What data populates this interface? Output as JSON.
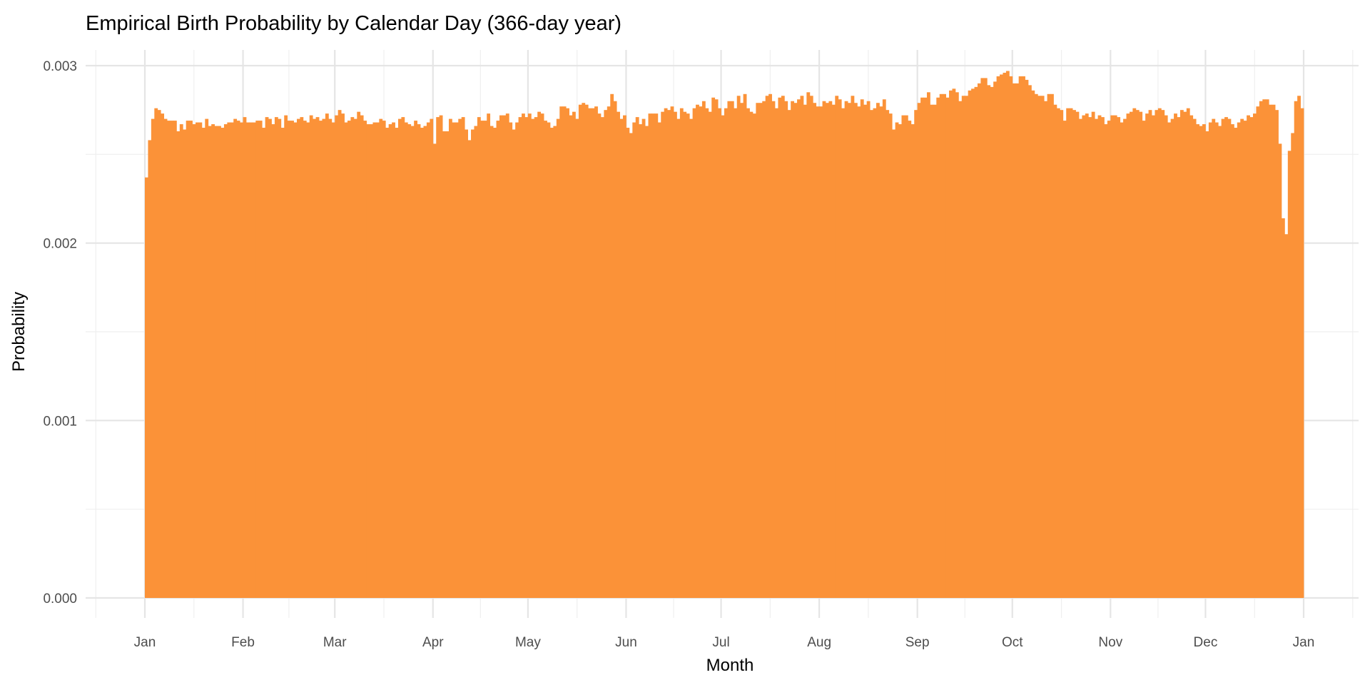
{
  "chart_data": {
    "type": "bar",
    "title": "Empirical Birth Probability by Calendar Day (366-day year)",
    "xlabel": "Month",
    "ylabel": "Probability",
    "ylim": [
      0,
      0.003
    ],
    "xlim_days": [
      -18.7,
      383.4
    ],
    "grid": true,
    "bar_color": "#fb9238",
    "y_ticks": [
      {
        "value": 0,
        "label": "0.000"
      },
      {
        "value": 0.001,
        "label": "0.001"
      },
      {
        "value": 0.002,
        "label": "0.002"
      },
      {
        "value": 0.003,
        "label": "0.003"
      }
    ],
    "x_ticks": [
      {
        "day": 0,
        "label": "Jan"
      },
      {
        "day": 31,
        "label": "Feb"
      },
      {
        "day": 60,
        "label": "Mar"
      },
      {
        "day": 91,
        "label": "Apr"
      },
      {
        "day": 121,
        "label": "May"
      },
      {
        "day": 152,
        "label": "Jun"
      },
      {
        "day": 182,
        "label": "Jul"
      },
      {
        "day": 213,
        "label": "Aug"
      },
      {
        "day": 244,
        "label": "Sep"
      },
      {
        "day": 274,
        "label": "Oct"
      },
      {
        "day": 305,
        "label": "Nov"
      },
      {
        "day": 335,
        "label": "Dec"
      },
      {
        "day": 366,
        "label": "Jan"
      }
    ],
    "values": [
      0.00237,
      0.00258,
      0.0027,
      0.00276,
      0.00275,
      0.00273,
      0.0027,
      0.00269,
      0.00269,
      0.00269,
      0.00263,
      0.00267,
      0.00264,
      0.00269,
      0.00269,
      0.00267,
      0.00268,
      0.00268,
      0.00265,
      0.0027,
      0.00266,
      0.00267,
      0.00266,
      0.00266,
      0.00265,
      0.00267,
      0.00268,
      0.00268,
      0.0027,
      0.00269,
      0.00268,
      0.00271,
      0.00268,
      0.00268,
      0.00268,
      0.00269,
      0.00269,
      0.00265,
      0.00271,
      0.0027,
      0.00267,
      0.00271,
      0.0027,
      0.00265,
      0.00272,
      0.00269,
      0.00269,
      0.00268,
      0.0027,
      0.00271,
      0.00269,
      0.00268,
      0.00272,
      0.0027,
      0.00271,
      0.00269,
      0.0027,
      0.00273,
      0.0027,
      0.00268,
      0.00272,
      0.00275,
      0.00273,
      0.00268,
      0.00269,
      0.00271,
      0.0027,
      0.00274,
      0.00272,
      0.00269,
      0.00267,
      0.00267,
      0.00268,
      0.00268,
      0.0027,
      0.00269,
      0.00265,
      0.00267,
      0.00268,
      0.00265,
      0.0027,
      0.00271,
      0.00268,
      0.00267,
      0.00266,
      0.00269,
      0.00267,
      0.00265,
      0.00266,
      0.00268,
      0.0027,
      0.00256,
      0.00271,
      0.00272,
      0.00263,
      0.00263,
      0.0027,
      0.00268,
      0.00268,
      0.0027,
      0.00271,
      0.00264,
      0.00258,
      0.00264,
      0.00266,
      0.00271,
      0.00269,
      0.00269,
      0.00273,
      0.00266,
      0.00265,
      0.00269,
      0.00272,
      0.00272,
      0.00273,
      0.00268,
      0.00264,
      0.00268,
      0.00271,
      0.00273,
      0.00271,
      0.00273,
      0.0027,
      0.00271,
      0.00274,
      0.00273,
      0.00269,
      0.00268,
      0.00265,
      0.00266,
      0.0027,
      0.00277,
      0.00277,
      0.00276,
      0.00272,
      0.00274,
      0.0027,
      0.00278,
      0.00279,
      0.00278,
      0.00276,
      0.00276,
      0.00277,
      0.00273,
      0.00271,
      0.00275,
      0.00277,
      0.00284,
      0.0028,
      0.00274,
      0.0027,
      0.00272,
      0.00265,
      0.00262,
      0.00268,
      0.00271,
      0.00267,
      0.0027,
      0.00266,
      0.00273,
      0.00273,
      0.00273,
      0.00268,
      0.00274,
      0.00276,
      0.00275,
      0.00277,
      0.00274,
      0.0027,
      0.00276,
      0.00274,
      0.00273,
      0.0027,
      0.00276,
      0.00278,
      0.00277,
      0.0028,
      0.00276,
      0.00274,
      0.00282,
      0.00281,
      0.00276,
      0.00272,
      0.00276,
      0.0028,
      0.0028,
      0.00276,
      0.00283,
      0.00279,
      0.00284,
      0.00276,
      0.00274,
      0.00273,
      0.00279,
      0.00279,
      0.0028,
      0.00283,
      0.00284,
      0.0028,
      0.00276,
      0.00282,
      0.00283,
      0.0028,
      0.00275,
      0.0028,
      0.00279,
      0.00281,
      0.00283,
      0.00278,
      0.00285,
      0.00283,
      0.00279,
      0.00277,
      0.00277,
      0.0028,
      0.00279,
      0.0028,
      0.00278,
      0.00283,
      0.00281,
      0.00276,
      0.0028,
      0.00279,
      0.00283,
      0.00279,
      0.00277,
      0.00281,
      0.00278,
      0.0028,
      0.00275,
      0.00276,
      0.00279,
      0.00277,
      0.00281,
      0.00275,
      0.00273,
      0.00264,
      0.00268,
      0.00267,
      0.00272,
      0.00272,
      0.00269,
      0.00267,
      0.00275,
      0.00279,
      0.00282,
      0.00282,
      0.00285,
      0.00278,
      0.00278,
      0.00282,
      0.00284,
      0.00284,
      0.00282,
      0.00286,
      0.00287,
      0.00285,
      0.0028,
      0.00283,
      0.00283,
      0.00286,
      0.00287,
      0.00288,
      0.0029,
      0.00293,
      0.00293,
      0.00289,
      0.00288,
      0.00291,
      0.00294,
      0.00295,
      0.00296,
      0.00297,
      0.00294,
      0.0029,
      0.0029,
      0.00294,
      0.00294,
      0.00292,
      0.00289,
      0.00286,
      0.00284,
      0.00283,
      0.00283,
      0.0028,
      0.00284,
      0.00284,
      0.00278,
      0.00276,
      0.00275,
      0.00269,
      0.00276,
      0.00276,
      0.00275,
      0.00274,
      0.0027,
      0.00272,
      0.00273,
      0.00271,
      0.00274,
      0.0027,
      0.00272,
      0.00271,
      0.00267,
      0.00269,
      0.00272,
      0.00272,
      0.00271,
      0.00268,
      0.0027,
      0.00273,
      0.00274,
      0.00276,
      0.00275,
      0.00274,
      0.00269,
      0.00273,
      0.00275,
      0.00272,
      0.00275,
      0.00276,
      0.00275,
      0.00272,
      0.00268,
      0.0027,
      0.00273,
      0.00271,
      0.00275,
      0.00274,
      0.00276,
      0.00272,
      0.0027,
      0.00267,
      0.00266,
      0.00267,
      0.00263,
      0.00268,
      0.0027,
      0.00268,
      0.00266,
      0.0027,
      0.00271,
      0.0027,
      0.00267,
      0.00265,
      0.00268,
      0.0027,
      0.00269,
      0.00272,
      0.00271,
      0.00273,
      0.00277,
      0.0028,
      0.00281,
      0.00281,
      0.00278,
      0.00278,
      0.00275,
      0.00256,
      0.00214,
      0.00205,
      0.00252,
      0.00262,
      0.0028,
      0.00283,
      0.00276
    ]
  }
}
